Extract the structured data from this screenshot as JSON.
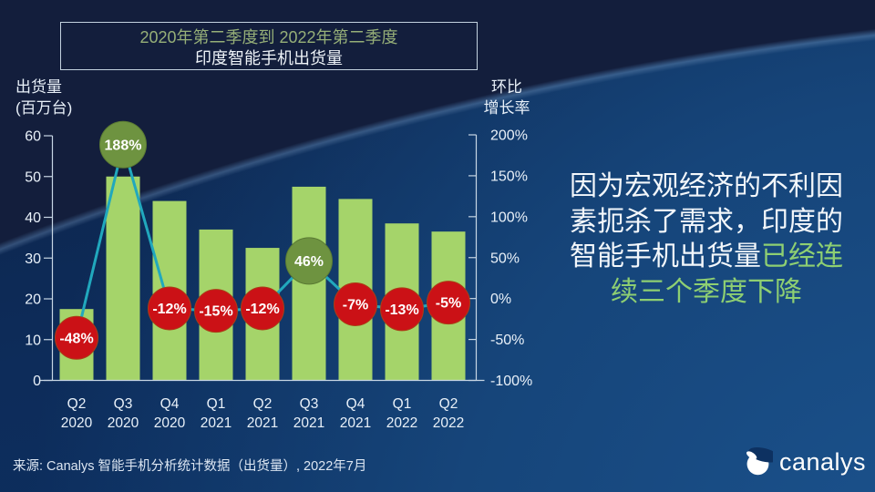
{
  "header": {
    "title_line1": "2020年第二季度到 2022年第二季度",
    "title_line2": "印度智能手机出货量"
  },
  "left_axis": {
    "title_line1": "出货量",
    "title_line2": "(百万台)",
    "ticks": [
      "60",
      "50",
      "40",
      "30",
      "20",
      "10",
      "0"
    ]
  },
  "right_axis": {
    "title_line1": "环比",
    "title_line2": "增长率",
    "ticks": [
      "200%",
      "150%",
      "100%",
      "50%",
      "0%",
      "-50%",
      "-100%"
    ]
  },
  "chart_data": {
    "type": "bar+line combo",
    "title": "2020年第二季度到 2022年第二季度 印度智能手机出货量",
    "categories": [
      {
        "quarter": "Q2",
        "year": "2020"
      },
      {
        "quarter": "Q3",
        "year": "2020"
      },
      {
        "quarter": "Q4",
        "year": "2020"
      },
      {
        "quarter": "Q1",
        "year": "2021"
      },
      {
        "quarter": "Q2",
        "year": "2021"
      },
      {
        "quarter": "Q3",
        "year": "2021"
      },
      {
        "quarter": "Q4",
        "year": "2021"
      },
      {
        "quarter": "Q1",
        "year": "2022"
      },
      {
        "quarter": "Q2",
        "year": "2022"
      }
    ],
    "series": [
      {
        "name": "出货量(百万台)",
        "type": "bar",
        "axis": "left",
        "values": [
          17.5,
          50,
          44,
          37,
          32.5,
          47.5,
          44.5,
          38.5,
          36.5
        ]
      },
      {
        "name": "环比增长率",
        "type": "line",
        "axis": "right",
        "values": [
          -48,
          188,
          -12,
          -15,
          -12,
          46,
          -7,
          -13,
          -5
        ],
        "labels": [
          "-48%",
          "188%",
          "-12%",
          "-15%",
          "-12%",
          "46%",
          "-7%",
          "-13%",
          "-5%"
        ]
      }
    ],
    "left_ylim": [
      0,
      60
    ],
    "right_ylim": [
      -100,
      200
    ],
    "legend": "none",
    "grid": "off",
    "colors": {
      "bar": "#a5d46a",
      "line": "#21a8bd",
      "negative_marker": "#cb1116",
      "positive_marker": "#6e9340",
      "marker_text": "#ffffff",
      "axis": "#c7d6e4"
    }
  },
  "commentary": {
    "line1": "因为宏观经济的不利因",
    "line2": "素扼杀了需求，印度的",
    "line3_white": "智能手机出货量",
    "line3_green": "已经连",
    "line4": "续三个季度下降"
  },
  "footer": {
    "source": "来源: Canalys 智能手机分析统计数据（出货量）, 2022年7月"
  },
  "logo": {
    "text": "canalys"
  }
}
